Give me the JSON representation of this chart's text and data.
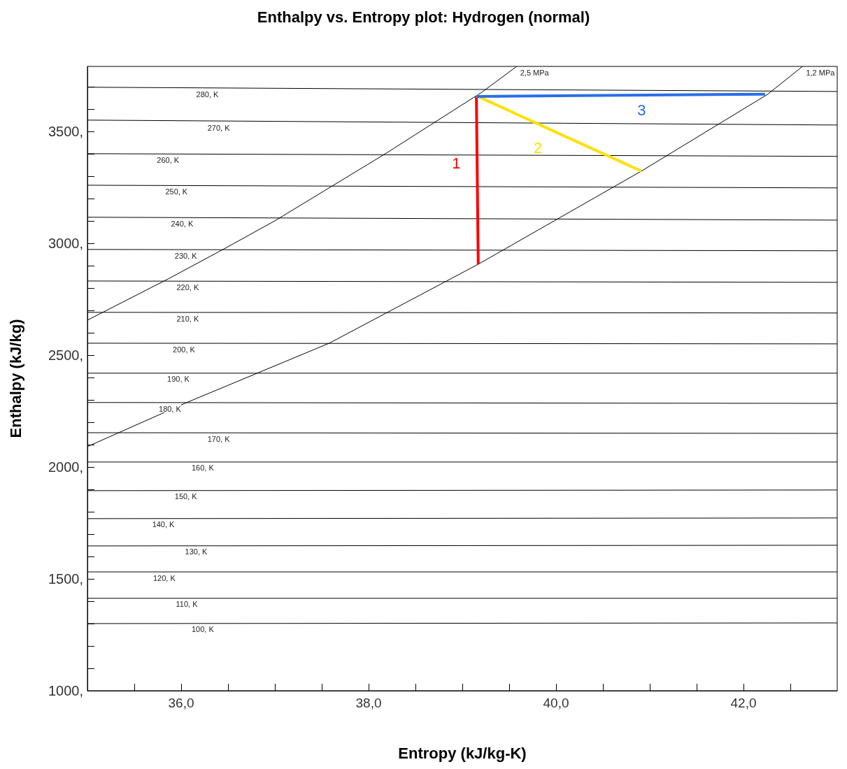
{
  "chart_data": {
    "type": "line",
    "title": "Enthalpy vs. Entropy plot: Hydrogen (normal)",
    "xlabel": "Entropy (kJ/kg-K)",
    "ylabel": "Enthalpy (kJ/kg)",
    "xlim": [
      35,
      43
    ],
    "ylim": [
      1000,
      3790
    ],
    "xticks": [
      {
        "value": 35.5,
        "label": null
      },
      {
        "value": 36,
        "label": "36,0"
      },
      {
        "value": 36.5,
        "label": null
      },
      {
        "value": 37,
        "label": null
      },
      {
        "value": 37.5,
        "label": null
      },
      {
        "value": 38,
        "label": "38,0"
      },
      {
        "value": 38.5,
        "label": null
      },
      {
        "value": 39,
        "label": null
      },
      {
        "value": 39.5,
        "label": null
      },
      {
        "value": 40,
        "label": "40,0"
      },
      {
        "value": 40.5,
        "label": null
      },
      {
        "value": 41,
        "label": null
      },
      {
        "value": 41.5,
        "label": null
      },
      {
        "value": 42,
        "label": "42,0"
      },
      {
        "value": 42.5,
        "label": null
      }
    ],
    "yticks": [
      {
        "value": 1000,
        "label": "1000,"
      },
      {
        "value": 1100,
        "label": null
      },
      {
        "value": 1200,
        "label": null
      },
      {
        "value": 1300,
        "label": null
      },
      {
        "value": 1400,
        "label": null
      },
      {
        "value": 1500,
        "label": "1500,"
      },
      {
        "value": 1600,
        "label": null
      },
      {
        "value": 1700,
        "label": null
      },
      {
        "value": 1800,
        "label": null
      },
      {
        "value": 1900,
        "label": null
      },
      {
        "value": 2000,
        "label": "2000,"
      },
      {
        "value": 2100,
        "label": null
      },
      {
        "value": 2200,
        "label": null
      },
      {
        "value": 2300,
        "label": null
      },
      {
        "value": 2400,
        "label": null
      },
      {
        "value": 2500,
        "label": "2500,"
      },
      {
        "value": 2600,
        "label": null
      },
      {
        "value": 2700,
        "label": null
      },
      {
        "value": 2800,
        "label": null
      },
      {
        "value": 2900,
        "label": null
      },
      {
        "value": 3000,
        "label": "3000,"
      },
      {
        "value": 3100,
        "label": null
      },
      {
        "value": 3200,
        "label": null
      },
      {
        "value": 3300,
        "label": null
      },
      {
        "value": 3400,
        "label": null
      },
      {
        "value": 3500,
        "label": "3500,"
      },
      {
        "value": 3600,
        "label": null
      },
      {
        "value": 3700,
        "label": null
      }
    ],
    "grid": false,
    "legend": false,
    "marker": "none",
    "series": [
      {
        "color": "#000000",
        "x": [
          35,
          43
        ],
        "values": [
          3697,
          3678
        ]
      },
      {
        "color": "#000000",
        "x": [
          35,
          43
        ],
        "values": [
          3550,
          3528
        ]
      },
      {
        "color": "#000000",
        "x": [
          35,
          43
        ],
        "values": [
          3400,
          3388
        ]
      },
      {
        "color": "#000000",
        "x": [
          35,
          43
        ],
        "values": [
          3259,
          3247
        ]
      },
      {
        "color": "#000000",
        "x": [
          35,
          43
        ],
        "values": [
          3116,
          3103
        ]
      },
      {
        "color": "#000000",
        "x": [
          35,
          43
        ],
        "values": [
          2972,
          2966
        ]
      },
      {
        "color": "#000000",
        "x": [
          35,
          43
        ],
        "values": [
          2831,
          2825
        ]
      },
      {
        "color": "#000000",
        "x": [
          35,
          43
        ],
        "values": [
          2691,
          2688
        ]
      },
      {
        "color": "#000000",
        "x": [
          35,
          43
        ],
        "values": [
          2553,
          2550
        ]
      },
      {
        "color": "#000000",
        "x": [
          35,
          43
        ],
        "values": [
          2419,
          2419
        ]
      },
      {
        "color": "#000000",
        "x": [
          35,
          43
        ],
        "values": [
          2288,
          2284
        ]
      },
      {
        "color": "#000000",
        "x": [
          35,
          43
        ],
        "values": [
          2153,
          2150
        ]
      },
      {
        "color": "#000000",
        "x": [
          35,
          43
        ],
        "values": [
          2022,
          2022
        ]
      },
      {
        "color": "#000000",
        "x": [
          35,
          43
        ],
        "values": [
          1894,
          1897
        ]
      },
      {
        "color": "#000000",
        "x": [
          35,
          43
        ],
        "values": [
          1769,
          1772
        ]
      },
      {
        "color": "#000000",
        "x": [
          35,
          43
        ],
        "values": [
          1647,
          1650
        ]
      },
      {
        "color": "#000000",
        "x": [
          35,
          43
        ],
        "values": [
          1531,
          1531
        ]
      },
      {
        "color": "#000000",
        "x": [
          35,
          43
        ],
        "values": [
          1413,
          1413
        ]
      },
      {
        "color": "#000000",
        "x": [
          35,
          43
        ],
        "values": [
          1300,
          1303
        ]
      },
      {
        "color": "#000000",
        "x": [
          35,
          35.86,
          36.46,
          37.0,
          38.18,
          39.21,
          39.58
        ],
        "values": [
          2656,
          2840,
          2975,
          3100,
          3400,
          3675,
          3790
        ]
      },
      {
        "color": "#000000",
        "x": [
          35,
          36.06,
          37.58,
          39.17,
          40.91,
          42.26,
          42.63
        ],
        "values": [
          2091,
          2288,
          2553,
          2906,
          3322,
          3666,
          3790
        ]
      },
      {
        "name": "1",
        "color": "#ff0000",
        "x": [
          39.15,
          39.17
        ],
        "values": [
          3659,
          2906
        ]
      },
      {
        "name": "2",
        "color": "#ffe000",
        "x": [
          39.15,
          40.91
        ],
        "values": [
          3659,
          3322
        ]
      },
      {
        "name": "3",
        "color": "#2a6ee8",
        "x": [
          39.15,
          42.23
        ],
        "values": [
          3656,
          3666
        ]
      }
    ],
    "annotations": [
      {
        "text": "280, K",
        "x": 36.28,
        "y": 3692
      },
      {
        "text": "270, K",
        "x": 36.4,
        "y": 3543
      },
      {
        "text": "260, K",
        "x": 35.86,
        "y": 3398
      },
      {
        "text": "250, K",
        "x": 35.95,
        "y": 3257
      },
      {
        "text": "240, K",
        "x": 36.01,
        "y": 3114
      },
      {
        "text": "230, K",
        "x": 36.05,
        "y": 2971
      },
      {
        "text": "220, K",
        "x": 36.07,
        "y": 2830
      },
      {
        "text": "210, K",
        "x": 36.07,
        "y": 2690
      },
      {
        "text": "200, K",
        "x": 36.03,
        "y": 2552
      },
      {
        "text": "190, K",
        "x": 35.97,
        "y": 2419
      },
      {
        "text": "180, K",
        "x": 35.88,
        "y": 2287
      },
      {
        "text": "170, K",
        "x": 36.4,
        "y": 2152
      },
      {
        "text": "160, K",
        "x": 36.23,
        "y": 2022
      },
      {
        "text": "150, K",
        "x": 36.05,
        "y": 1895
      },
      {
        "text": "140, K",
        "x": 35.81,
        "y": 1770
      },
      {
        "text": "130, K",
        "x": 36.16,
        "y": 1648
      },
      {
        "text": "120, K",
        "x": 35.82,
        "y": 1531
      },
      {
        "text": "110, K",
        "x": 36.06,
        "y": 1413
      },
      {
        "text": "100, K",
        "x": 36.23,
        "y": 1301
      },
      {
        "text": "2,5 MPa",
        "x": 39.58,
        "y": 3790
      },
      {
        "text": "1,2 MPa",
        "x": 42.63,
        "y": 3790
      }
    ]
  }
}
